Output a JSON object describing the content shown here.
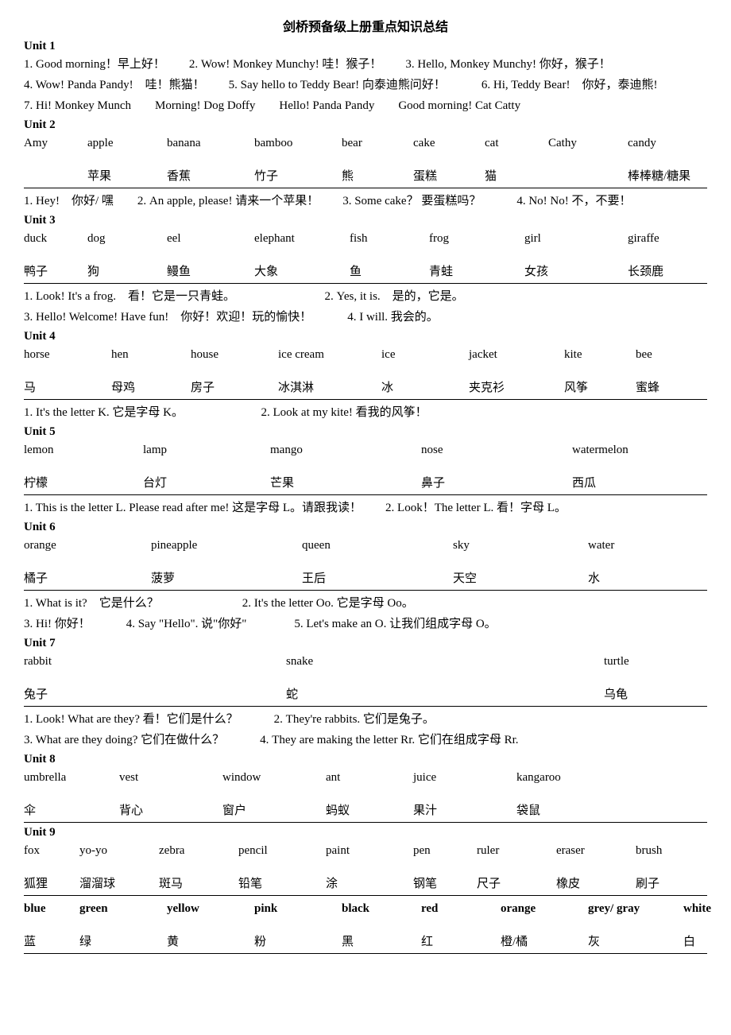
{
  "title": "剑桥预备级上册重点知识总结",
  "units": {
    "u1": {
      "label": "Unit 1",
      "lines": [
        "1. Good morning！早上好！　　2. Wow! Monkey Munchy! 哇！猴子！　　3. Hello, Monkey Munchy! 你好，猴子！",
        "4. Wow! Panda Pandy!　哇！熊猫！　　5. Say hello to Teddy Bear! 向泰迪熊问好！　　　6. Hi, Teddy Bear!　你好，泰迪熊!",
        "7. Hi! Monkey Munch　　Morning! Dog Doffy　　Hello! Panda Pandy　　Good morning! Cat Catty"
      ]
    },
    "u2": {
      "label": "Unit 2",
      "en": [
        "Amy",
        "apple",
        "banana",
        "bamboo",
        "bear",
        "cake",
        "cat",
        "Cathy",
        "candy"
      ],
      "zh": [
        "",
        "苹果",
        "香蕉",
        "竹子",
        "熊",
        "蛋糕",
        "猫",
        "",
        "棒棒糖/糖果"
      ],
      "widths": [
        80,
        100,
        110,
        110,
        90,
        90,
        80,
        100,
        100
      ],
      "sentences": "1. Hey!　你好/ 嘿　　2. An apple, please!  请来一个苹果！　　3. Some cake？ 要蛋糕吗？　　　4. No! No!  不，不要！"
    },
    "u3": {
      "label": "Unit 3",
      "en": [
        "duck",
        "dog",
        "eel",
        "elephant",
        "fish",
        "frog",
        "girl",
        "giraffe"
      ],
      "zh": [
        "鸭子",
        "狗",
        "鳗鱼",
        "大象",
        "鱼",
        "青蛙",
        "女孩",
        "长颈鹿"
      ],
      "widths": [
        80,
        100,
        110,
        120,
        100,
        120,
        130,
        100
      ],
      "lines": [
        "1. Look! It's a frog.　看！它是一只青蛙。　　　　　　　　2. Yes, it is.　是的，它是。",
        "3. Hello! Welcome! Have fun!　你好！欢迎！玩的愉快！　　　4. I will.  我会的。"
      ]
    },
    "u4": {
      "label": "Unit 4",
      "en": [
        "horse",
        "hen",
        "house",
        "ice cream",
        "ice",
        "jacket",
        "kite",
        "bee"
      ],
      "zh": [
        "马",
        "母鸡",
        "房子",
        "冰淇淋",
        "冰",
        "夹克衫",
        "风筝",
        "蜜蜂"
      ],
      "widths": [
        110,
        100,
        110,
        130,
        110,
        120,
        90,
        90
      ],
      "sentences": "1. It's the letter K. 它是字母 K。　　　　　　　2. Look at my kite!  看我的风筝！"
    },
    "u5": {
      "label": "Unit 5",
      "en": [
        "lemon",
        "lamp",
        "mango",
        "nose",
        "watermelon"
      ],
      "zh": [
        "柠檬",
        "台灯",
        "芒果",
        "鼻子",
        "西瓜"
      ],
      "widths": [
        150,
        160,
        190,
        190,
        170
      ],
      "sentences": "1. This is the letter L. Please read after me!  这是字母 L。请跟我读！　　2. Look！The letter L. 看！字母 L。"
    },
    "u6": {
      "label": "Unit 6",
      "en": [
        "orange",
        "pineapple",
        "queen",
        "sky",
        "water"
      ],
      "zh": [
        "橘子",
        "菠萝",
        "王后",
        "天空",
        "水"
      ],
      "widths": [
        160,
        190,
        190,
        170,
        150
      ],
      "lines": [
        "1. What is it?　它是什么？　　　　　　　2. It's the letter Oo.  它是字母 Oo。",
        "3. Hi!  你好！　　　4. Say \"Hello\". 说\"你好\"　　　　5. Let's make an O.  让我们组成字母 O。"
      ]
    },
    "u7": {
      "label": "Unit 7",
      "en": [
        "rabbit",
        "snake",
        "turtle"
      ],
      "zh": [
        "兔子",
        "蛇",
        "乌龟"
      ],
      "widths": [
        330,
        400,
        130
      ],
      "lines": [
        "1. Look! What are they?  看！它们是什么？　　　2. They're rabbits.  它们是兔子。",
        "3. What are they doing?  它们在做什么？　　　4. They are making the letter Rr.  它们在组成字母 Rr."
      ]
    },
    "u8": {
      "label": "Unit 8",
      "en": [
        "umbrella",
        "vest",
        "window",
        "ant",
        "juice",
        "kangaroo"
      ],
      "zh": [
        "伞",
        "背心",
        "窗户",
        "蚂蚁",
        "果汁",
        "袋鼠"
      ],
      "widths": [
        120,
        130,
        130,
        110,
        130,
        120
      ]
    },
    "u9": {
      "label": "Unit 9",
      "en": [
        "fox",
        "yo-yo",
        "zebra",
        "pencil",
        "paint",
        "pen",
        "ruler",
        "eraser",
        "brush"
      ],
      "zh": [
        "狐狸",
        "溜溜球",
        "斑马",
        "铅笔",
        "涂",
        "钢笔",
        "尺子",
        "橡皮",
        "刷子"
      ],
      "widths": [
        70,
        100,
        100,
        110,
        110,
        80,
        100,
        100,
        90
      ],
      "colors_en": [
        "blue",
        "green",
        "yellow",
        "pink",
        "black",
        "red",
        "orange",
        "grey/ gray",
        "white"
      ],
      "colors_zh": [
        "蓝",
        "绿",
        "黄",
        "粉",
        "黑",
        "红",
        "橙/橘",
        "灰",
        "白"
      ],
      "colors_widths": [
        70,
        110,
        110,
        110,
        100,
        100,
        110,
        120,
        90
      ]
    }
  }
}
